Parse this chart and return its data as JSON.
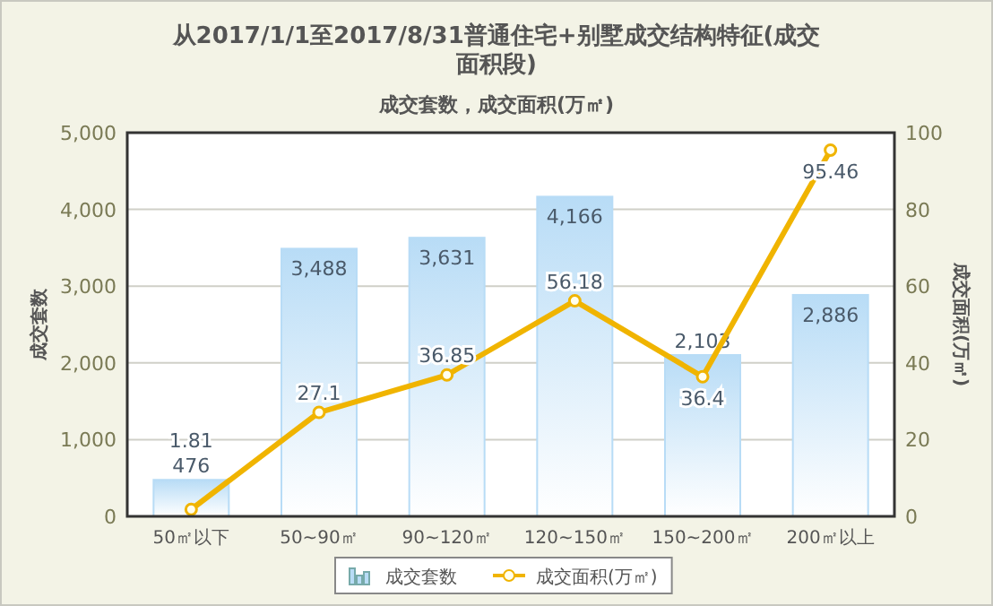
{
  "chart_data": {
    "type": "bar",
    "title": "从2017/1/1至2017/8/31普通住宅+别墅成交结构特征(成交面积段)",
    "subtitle": "成交套数，成交面积(万㎡)",
    "ylabel": "成交套数",
    "y2label": "成交面积(万㎡)",
    "categories": [
      "50㎡以下",
      "50~90㎡",
      "90~120㎡",
      "120~150㎡",
      "150~200㎡",
      "200㎡以上"
    ],
    "series": [
      {
        "name": "成交套数",
        "color": "#b8dcf6",
        "values": [
          476,
          3488,
          3631,
          4166,
          2103,
          2886
        ],
        "value_labels": [
          "476",
          "3,488",
          "3,631",
          "4,166",
          "2,103",
          "2,886"
        ]
      },
      {
        "name": "成交面积(万㎡)",
        "type": "line",
        "axis": "y2",
        "color": "#f0b400",
        "values": [
          1.81,
          27.1,
          36.85,
          56.18,
          36.4,
          95.46
        ],
        "value_labels": [
          "1.81",
          "27.1",
          "36.85",
          "56.18",
          "36.4",
          "95.46"
        ]
      }
    ],
    "ylim": [
      0,
      5000
    ],
    "yticks": [
      {
        "value": 0,
        "label": "0"
      },
      {
        "value": 1000,
        "label": "1,000"
      },
      {
        "value": 2000,
        "label": "2,000"
      },
      {
        "value": 3000,
        "label": "3,000"
      },
      {
        "value": 4000,
        "label": "4,000"
      },
      {
        "value": 5000,
        "label": "5,000"
      }
    ],
    "y2lim": [
      0,
      100
    ],
    "y2ticks": [
      0,
      20,
      40,
      60,
      80,
      100
    ],
    "grid": "y",
    "legend": "bottom",
    "marker": "circle",
    "line_style": "solid"
  }
}
